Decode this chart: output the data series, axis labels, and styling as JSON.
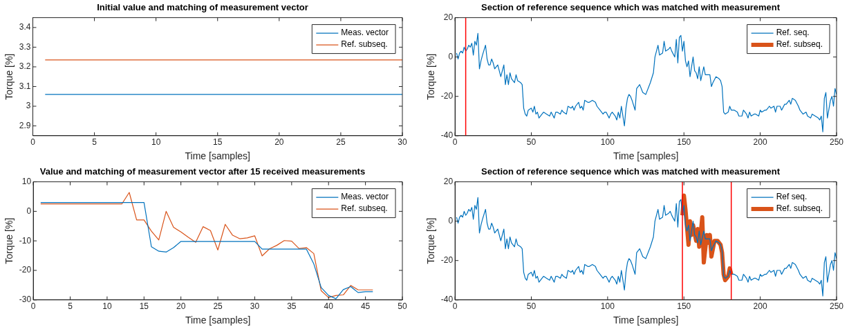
{
  "chart_data": [
    {
      "type": "line",
      "title": "Initial value and matching of measurement vector",
      "xlabel": "Time [samples]",
      "ylabel": "Torque [%]",
      "xlim": [
        0,
        30
      ],
      "xticks": [
        0,
        5,
        10,
        15,
        20,
        25,
        30
      ],
      "ylim": [
        2.85,
        3.45
      ],
      "yticks": [
        2.9,
        3,
        3.1,
        3.2,
        3.3,
        3.4
      ],
      "grid": false,
      "legend": "top right",
      "series": [
        {
          "name": "Meas. vector",
          "color": "#0072bd",
          "x": [
            1,
            30
          ],
          "values": [
            3.06,
            3.06
          ]
        },
        {
          "name": "Ref. subseq.",
          "color": "#d95319",
          "x": [
            1,
            30
          ],
          "values": [
            3.235,
            3.235
          ]
        }
      ]
    },
    {
      "type": "line",
      "title": "Section of reference sequence which was matched with measurement",
      "xlabel": "Time [samples]",
      "ylabel": "Torque [%]",
      "xlim": [
        0,
        250
      ],
      "xticks": [
        0,
        50,
        100,
        150,
        200,
        250
      ],
      "ylim": [
        -40,
        20
      ],
      "yticks": [
        -40,
        -20,
        0,
        20
      ],
      "grid": false,
      "legend": "top right",
      "ref_lines": [
        {
          "axis": "x",
          "value": 7,
          "color": "#ff0000"
        }
      ],
      "series": [
        {
          "name": "Ref. seq.",
          "color": "#0072bd",
          "x": [
            1,
            2,
            3,
            4,
            5,
            6,
            7,
            8,
            9,
            10,
            11,
            12,
            13,
            14,
            15,
            16,
            17,
            18,
            20,
            21,
            22,
            23,
            24,
            25,
            26,
            27,
            28,
            30,
            31,
            32,
            33,
            34,
            35,
            36,
            37,
            39,
            40,
            41,
            43,
            44,
            45,
            46,
            47,
            48,
            50,
            51,
            52,
            53,
            54,
            55,
            57,
            58,
            60,
            62,
            63,
            65,
            66,
            67,
            69,
            70,
            71,
            73,
            74,
            76,
            77,
            78,
            79,
            81,
            82,
            83,
            84,
            85,
            87,
            88,
            90,
            92,
            93,
            95,
            97,
            98,
            99,
            101,
            102,
            103,
            105,
            106,
            107,
            108,
            109,
            111,
            112,
            113,
            114,
            115,
            116,
            118,
            119,
            121,
            123,
            125,
            127,
            128,
            130,
            131,
            133,
            134,
            136,
            137,
            138,
            140,
            141,
            142,
            144,
            145,
            146,
            147,
            148,
            149,
            150,
            151,
            152,
            153,
            154,
            156,
            157,
            158,
            159,
            160,
            161,
            163,
            164,
            166,
            167,
            168,
            169,
            171,
            173,
            174,
            175,
            176,
            177,
            179,
            180,
            181,
            183,
            185,
            186,
            188,
            189,
            191,
            192,
            193,
            194,
            196,
            197,
            199,
            200,
            201,
            203,
            204,
            206,
            207,
            209,
            210,
            211,
            213,
            214,
            216,
            217,
            219,
            220,
            221,
            223,
            225,
            226,
            228,
            230,
            231,
            233,
            234,
            236,
            238,
            239,
            240,
            241,
            242,
            243,
            244,
            246,
            247,
            248,
            249,
            250
          ],
          "values": [
            2,
            -1,
            2,
            3,
            2,
            5,
            3,
            4,
            6,
            5,
            7,
            1,
            8,
            6,
            12,
            -6,
            -2,
            1,
            6,
            -1,
            -4,
            -4,
            -1,
            -3,
            -6,
            -5,
            -4,
            -10,
            -7,
            -4,
            -14,
            -9,
            -14,
            -8,
            -11,
            -13,
            -9,
            -12,
            -13,
            -14,
            -26,
            -29,
            -30,
            -27,
            -26,
            -28,
            -25,
            -29,
            -28,
            -31,
            -29,
            -28,
            -29,
            -30,
            -28,
            -31,
            -28,
            -28,
            -29,
            -27,
            -28,
            -29,
            -25,
            -26,
            -25,
            -27,
            -25,
            -23,
            -26,
            -25,
            -27,
            -22,
            -23,
            -23,
            -22,
            -23,
            -25,
            -27,
            -29,
            -28,
            -28,
            -31,
            -29,
            -28,
            -30,
            -32,
            -28,
            -31,
            -25,
            -35,
            -26,
            -21,
            -19,
            -20,
            -22,
            -27,
            -16,
            -14,
            -18,
            -19,
            -15,
            -13,
            -8,
            0,
            6,
            1,
            2,
            8,
            3,
            4,
            5,
            3,
            0,
            9,
            -3,
            10,
            11,
            3,
            8,
            -2,
            -5,
            -2,
            -10,
            0,
            -7,
            -8,
            -11,
            -5,
            -12,
            -5,
            -9,
            -9,
            -9,
            -15,
            -13,
            -10,
            -11,
            -12,
            -15,
            -28,
            -29,
            -28,
            -25,
            -27,
            -27,
            -28,
            -30,
            -30,
            -27,
            -29,
            -31,
            -28,
            -30,
            -29,
            -29,
            -30,
            -27,
            -28,
            -27,
            -27,
            -25,
            -26,
            -25,
            -28,
            -25,
            -25,
            -27,
            -24,
            -24,
            -22,
            -24,
            -21,
            -22,
            -25,
            -27,
            -29,
            -28,
            -30,
            -31,
            -29,
            -30,
            -31,
            -32,
            -30,
            -38,
            -21,
            -18,
            -31,
            -22,
            -20,
            -25,
            -16,
            -19
          ]
        },
        {
          "name": "Ref. subseq.",
          "color": "#d95319"
        }
      ]
    },
    {
      "type": "line",
      "title": "Value and matching of measurement vector after 15 received measurements",
      "xlabel": "Time [samples]",
      "ylabel": "Torque [%]",
      "xlim": [
        0,
        50
      ],
      "xticks": [
        0,
        5,
        10,
        15,
        20,
        25,
        30,
        35,
        40,
        45,
        50
      ],
      "ylim": [
        -30,
        10
      ],
      "yticks": [
        -30,
        -20,
        -10,
        0,
        10
      ],
      "grid": false,
      "legend": "top right",
      "series": [
        {
          "name": "Meas. vector",
          "color": "#0072bd",
          "x": [
            1,
            2,
            3,
            4,
            5,
            6,
            7,
            8,
            9,
            10,
            11,
            12,
            13,
            14,
            15,
            16,
            17,
            18,
            19,
            20,
            21,
            22,
            23,
            24,
            25,
            26,
            27,
            28,
            29,
            30,
            31,
            32,
            33,
            34,
            35,
            36,
            37,
            38,
            39,
            40,
            41,
            42,
            43,
            44,
            45,
            46
          ],
          "values": [
            3,
            3,
            3,
            3,
            3,
            3,
            3,
            3,
            3,
            3,
            3,
            3,
            3,
            3,
            3,
            -12,
            -13.5,
            -13.8,
            -12.3,
            -10.2,
            -10.2,
            -10.2,
            -10.2,
            -10.2,
            -10.2,
            -10.2,
            -10.2,
            -10.2,
            -10.2,
            -10.2,
            -12.8,
            -12.8,
            -12.8,
            -12.8,
            -12.8,
            -12.8,
            -12.8,
            -17.8,
            -25.8,
            -28.5,
            -29.6,
            -26.5,
            -25.5,
            -27.5,
            -27.2,
            -27.2
          ]
        },
        {
          "name": "Ref. subseq.",
          "color": "#d95319",
          "x": [
            1,
            2,
            3,
            4,
            5,
            6,
            7,
            8,
            9,
            10,
            11,
            12,
            13,
            14,
            15,
            16,
            17,
            18,
            19,
            20,
            21,
            22,
            23,
            24,
            25,
            26,
            27,
            28,
            29,
            30,
            31,
            32,
            33,
            34,
            35,
            36,
            37,
            38,
            39,
            40,
            41,
            42,
            43,
            44,
            45,
            46
          ],
          "values": [
            2.5,
            2.5,
            2.5,
            2.5,
            2.5,
            2.5,
            2.5,
            2.5,
            2.5,
            2.5,
            2.5,
            2.5,
            6.4,
            -2.9,
            -2.9,
            -6.7,
            -9.7,
            0,
            -5.4,
            -7,
            -8.8,
            -10.5,
            -5.2,
            -6.5,
            -13.1,
            -4.4,
            -8.1,
            -9.3,
            -9,
            -8.3,
            -15.1,
            -12.7,
            -11.5,
            -9.9,
            -10.1,
            -12.6,
            -12.3,
            -14.3,
            -26.9,
            -29.2,
            -28.5,
            -28.3,
            -25.1,
            -26.6,
            -26.6,
            -26.6
          ]
        }
      ]
    },
    {
      "type": "line",
      "title": "Section of reference sequence which was matched with measurement",
      "xlabel": "Time [samples]",
      "ylabel": "Torque [%]",
      "xlim": [
        0,
        250
      ],
      "xticks": [
        0,
        50,
        100,
        150,
        200,
        250
      ],
      "ylim": [
        -40,
        20
      ],
      "yticks": [
        -40,
        -20,
        0,
        20
      ],
      "grid": false,
      "legend": "top right",
      "ref_lines": [
        {
          "axis": "x",
          "value": 149,
          "color": "#ff0000"
        },
        {
          "axis": "x",
          "value": 181,
          "color": "#ff0000"
        }
      ],
      "series": [
        {
          "name": "Ref seq.",
          "color": "#0072bd",
          "x": [
            1,
            2,
            3,
            4,
            5,
            6,
            7,
            8,
            9,
            10,
            11,
            12,
            13,
            14,
            15,
            16,
            17,
            18,
            20,
            21,
            22,
            23,
            24,
            25,
            26,
            27,
            28,
            30,
            31,
            32,
            33,
            34,
            35,
            36,
            37,
            39,
            40,
            41,
            43,
            44,
            45,
            46,
            47,
            48,
            50,
            51,
            52,
            53,
            54,
            55,
            57,
            58,
            60,
            62,
            63,
            65,
            66,
            67,
            69,
            70,
            71,
            73,
            74,
            76,
            77,
            78,
            79,
            81,
            82,
            83,
            84,
            85,
            87,
            88,
            90,
            92,
            93,
            95,
            97,
            98,
            99,
            101,
            102,
            103,
            105,
            106,
            107,
            108,
            109,
            111,
            112,
            113,
            114,
            115,
            116,
            118,
            119,
            121,
            123,
            125,
            127,
            128,
            130,
            131,
            133,
            134,
            136,
            137,
            138,
            140,
            141,
            142,
            144,
            145,
            146,
            147,
            148,
            149,
            150,
            151,
            152,
            153,
            154,
            156,
            157,
            158,
            159,
            160,
            161,
            163,
            164,
            166,
            167,
            168,
            169,
            171,
            173,
            174,
            175,
            176,
            177,
            179,
            180,
            181,
            183,
            185,
            186,
            188,
            189,
            191,
            192,
            193,
            194,
            196,
            197,
            199,
            200,
            201,
            203,
            204,
            206,
            207,
            209,
            210,
            211,
            213,
            214,
            216,
            217,
            219,
            220,
            221,
            223,
            225,
            226,
            228,
            230,
            231,
            233,
            234,
            236,
            238,
            239,
            240,
            241,
            242,
            243,
            244,
            246,
            247,
            248,
            249,
            250
          ],
          "values": [
            2,
            -1,
            2,
            3,
            2,
            5,
            3,
            4,
            6,
            5,
            7,
            1,
            8,
            6,
            12,
            -6,
            -2,
            1,
            6,
            -1,
            -4,
            -4,
            -1,
            -3,
            -6,
            -5,
            -4,
            -10,
            -7,
            -4,
            -14,
            -9,
            -14,
            -8,
            -11,
            -13,
            -9,
            -12,
            -13,
            -14,
            -26,
            -29,
            -30,
            -27,
            -26,
            -28,
            -25,
            -29,
            -28,
            -31,
            -29,
            -28,
            -29,
            -30,
            -28,
            -31,
            -28,
            -28,
            -29,
            -27,
            -28,
            -29,
            -25,
            -26,
            -25,
            -27,
            -25,
            -23,
            -26,
            -25,
            -27,
            -22,
            -23,
            -23,
            -22,
            -23,
            -25,
            -27,
            -29,
            -28,
            -28,
            -31,
            -29,
            -28,
            -30,
            -32,
            -28,
            -31,
            -25,
            -35,
            -26,
            -21,
            -19,
            -20,
            -22,
            -27,
            -16,
            -14,
            -18,
            -19,
            -15,
            -13,
            -8,
            0,
            6,
            1,
            2,
            8,
            3,
            4,
            5,
            3,
            0,
            9,
            -3,
            10,
            11,
            3,
            8,
            -2,
            -5,
            -2,
            -10,
            0,
            -7,
            -8,
            -11,
            -5,
            -12,
            -5,
            -9,
            -9,
            -9,
            -15,
            -13,
            -10,
            -11,
            -12,
            -15,
            -28,
            -29,
            -28,
            -25,
            -27,
            -27,
            -28,
            -30,
            -30,
            -27,
            -29,
            -31,
            -28,
            -30,
            -29,
            -29,
            -30,
            -27,
            -28,
            -27,
            -27,
            -25,
            -26,
            -25,
            -28,
            -25,
            -25,
            -27,
            -24,
            -24,
            -22,
            -24,
            -21,
            -22,
            -25,
            -27,
            -29,
            -28,
            -30,
            -31,
            -29,
            -30,
            -31,
            -32,
            -30,
            -38,
            -21,
            -18,
            -31,
            -22,
            -20,
            -25,
            -16,
            -19
          ]
        },
        {
          "name": "Ref. subseq.",
          "color": "#d95319",
          "x": [
            149,
            150,
            151,
            153,
            154,
            155,
            156,
            158,
            159,
            160,
            161,
            162,
            163,
            165,
            166,
            167,
            168,
            170,
            171,
            172,
            174,
            175,
            176,
            177,
            178,
            179,
            180,
            181
          ],
          "values": [
            3,
            13,
            6,
            -12,
            0,
            -7,
            -2,
            -10,
            -4,
            -13,
            -6,
            2,
            -21,
            -7,
            -11,
            -7,
            -18,
            -10,
            -10,
            -10,
            -12,
            -16,
            -27,
            -30,
            -29,
            -28,
            -24,
            -27
          ]
        }
      ]
    }
  ]
}
